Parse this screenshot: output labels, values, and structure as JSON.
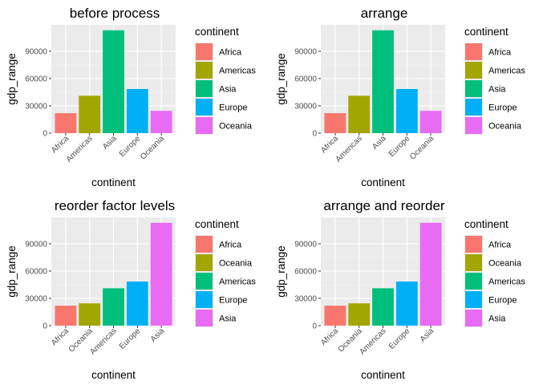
{
  "colors": {
    "panel_background": "#ebebeb",
    "grid_major": "#ffffff",
    "grid_minor": "#f5f5f5",
    "text_dark": "#000000",
    "tick_text": "#4d4d4d",
    "tick_mark": "#333333"
  },
  "chart_data": [
    {
      "type": "bar",
      "title": "before process",
      "xlabel": "continent",
      "ylabel": "gdp_range",
      "categories": [
        "Africa",
        "Americas",
        "Asia",
        "Europe",
        "Oceania"
      ],
      "values": [
        21950,
        41100,
        113000,
        48500,
        24500
      ],
      "colors": [
        "#F8766D",
        "#A3A500",
        "#00BF7D",
        "#00B0F6",
        "#E76BF3"
      ],
      "ylim": [
        0,
        119000
      ],
      "yticks": [
        0,
        30000,
        60000,
        90000
      ],
      "ytick_labels": [
        "0",
        "30000",
        "60000",
        "90000"
      ],
      "grid": true,
      "legend": {
        "title": "continent",
        "position": "right",
        "entries": [
          {
            "label": "Africa",
            "color": "#F8766D"
          },
          {
            "label": "Americas",
            "color": "#A3A500"
          },
          {
            "label": "Asia",
            "color": "#00BF7D"
          },
          {
            "label": "Europe",
            "color": "#00B0F6"
          },
          {
            "label": "Oceania",
            "color": "#E76BF3"
          }
        ]
      }
    },
    {
      "type": "bar",
      "title": "arrange",
      "xlabel": "continent",
      "ylabel": "gdp_range",
      "categories": [
        "Africa",
        "Americas",
        "Asia",
        "Europe",
        "Oceania"
      ],
      "values": [
        21950,
        41100,
        113000,
        48500,
        24500
      ],
      "colors": [
        "#F8766D",
        "#A3A500",
        "#00BF7D",
        "#00B0F6",
        "#E76BF3"
      ],
      "ylim": [
        0,
        119000
      ],
      "yticks": [
        0,
        30000,
        60000,
        90000
      ],
      "ytick_labels": [
        "0",
        "30000",
        "60000",
        "90000"
      ],
      "grid": true,
      "legend": {
        "title": "continent",
        "position": "right",
        "entries": [
          {
            "label": "Africa",
            "color": "#F8766D"
          },
          {
            "label": "Americas",
            "color": "#A3A500"
          },
          {
            "label": "Asia",
            "color": "#00BF7D"
          },
          {
            "label": "Europe",
            "color": "#00B0F6"
          },
          {
            "label": "Oceania",
            "color": "#E76BF3"
          }
        ]
      }
    },
    {
      "type": "bar",
      "title": "reorder factor levels",
      "xlabel": "continent",
      "ylabel": "gdp_range",
      "categories": [
        "Africa",
        "Oceania",
        "Americas",
        "Europe",
        "Asia"
      ],
      "values": [
        21950,
        24500,
        41100,
        48500,
        113000
      ],
      "colors": [
        "#F8766D",
        "#A3A500",
        "#00BF7D",
        "#00B0F6",
        "#E76BF3"
      ],
      "ylim": [
        0,
        119000
      ],
      "yticks": [
        0,
        30000,
        60000,
        90000
      ],
      "ytick_labels": [
        "0",
        "30000",
        "60000",
        "90000"
      ],
      "grid": true,
      "legend": {
        "title": "continent",
        "position": "right",
        "entries": [
          {
            "label": "Africa",
            "color": "#F8766D"
          },
          {
            "label": "Oceania",
            "color": "#A3A500"
          },
          {
            "label": "Americas",
            "color": "#00BF7D"
          },
          {
            "label": "Europe",
            "color": "#00B0F6"
          },
          {
            "label": "Asia",
            "color": "#E76BF3"
          }
        ]
      }
    },
    {
      "type": "bar",
      "title": "arrange and reorder",
      "xlabel": "continent",
      "ylabel": "gdp_range",
      "categories": [
        "Africa",
        "Oceania",
        "Americas",
        "Europe",
        "Asia"
      ],
      "values": [
        21950,
        24500,
        41100,
        48500,
        113000
      ],
      "colors": [
        "#F8766D",
        "#A3A500",
        "#00BF7D",
        "#00B0F6",
        "#E76BF3"
      ],
      "ylim": [
        0,
        119000
      ],
      "yticks": [
        0,
        30000,
        60000,
        90000
      ],
      "ytick_labels": [
        "0",
        "30000",
        "60000",
        "90000"
      ],
      "grid": true,
      "legend": {
        "title": "continent",
        "position": "right",
        "entries": [
          {
            "label": "Africa",
            "color": "#F8766D"
          },
          {
            "label": "Oceania",
            "color": "#A3A500"
          },
          {
            "label": "Americas",
            "color": "#00BF7D"
          },
          {
            "label": "Europe",
            "color": "#00B0F6"
          },
          {
            "label": "Asia",
            "color": "#E76BF3"
          }
        ]
      }
    }
  ]
}
